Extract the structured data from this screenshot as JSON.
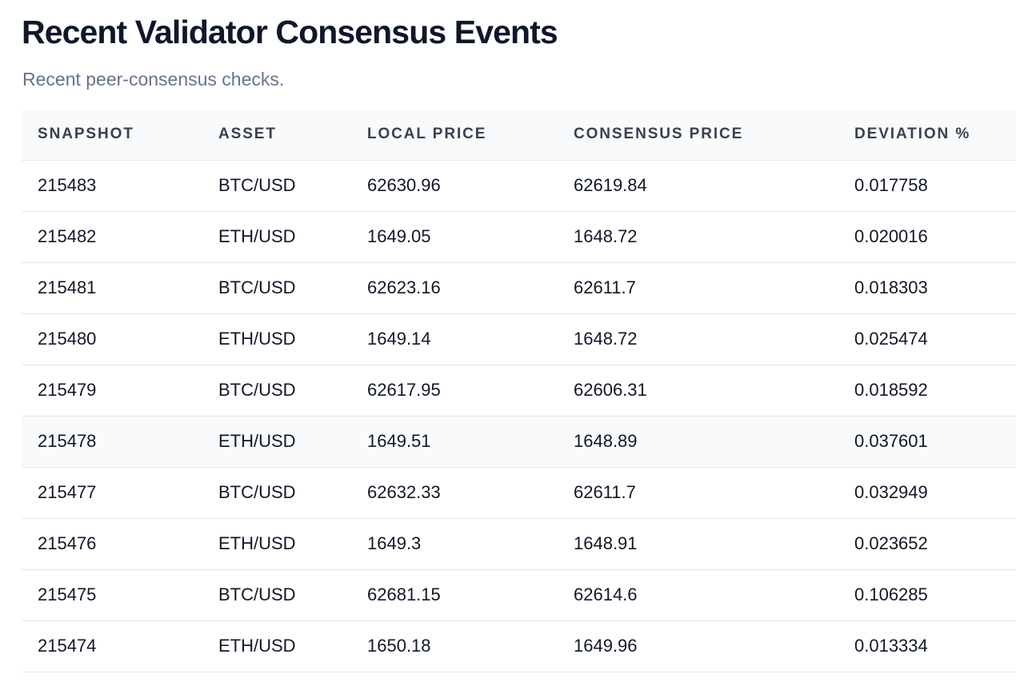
{
  "header": {
    "title": "Recent Validator Consensus Events",
    "subtitle": "Recent peer-consensus checks."
  },
  "table": {
    "columns": [
      "SNAPSHOT",
      "ASSET",
      "LOCAL PRICE",
      "CONSENSUS PRICE",
      "DEVIATION %"
    ],
    "rows": [
      {
        "snapshot": "215483",
        "asset": "BTC/USD",
        "local_price": "62630.96",
        "consensus_price": "62619.84",
        "deviation": "0.017758"
      },
      {
        "snapshot": "215482",
        "asset": "ETH/USD",
        "local_price": "1649.05",
        "consensus_price": "1648.72",
        "deviation": "0.020016"
      },
      {
        "snapshot": "215481",
        "asset": "BTC/USD",
        "local_price": "62623.16",
        "consensus_price": "62611.7",
        "deviation": "0.018303"
      },
      {
        "snapshot": "215480",
        "asset": "ETH/USD",
        "local_price": "1649.14",
        "consensus_price": "1648.72",
        "deviation": "0.025474"
      },
      {
        "snapshot": "215479",
        "asset": "BTC/USD",
        "local_price": "62617.95",
        "consensus_price": "62606.31",
        "deviation": "0.018592"
      },
      {
        "snapshot": "215478",
        "asset": "ETH/USD",
        "local_price": "1649.51",
        "consensus_price": "1648.89",
        "deviation": "0.037601"
      },
      {
        "snapshot": "215477",
        "asset": "BTC/USD",
        "local_price": "62632.33",
        "consensus_price": "62611.7",
        "deviation": "0.032949"
      },
      {
        "snapshot": "215476",
        "asset": "ETH/USD",
        "local_price": "1649.3",
        "consensus_price": "1648.91",
        "deviation": "0.023652"
      },
      {
        "snapshot": "215475",
        "asset": "BTC/USD",
        "local_price": "62681.15",
        "consensus_price": "62614.6",
        "deviation": "0.106285"
      },
      {
        "snapshot": "215474",
        "asset": "ETH/USD",
        "local_price": "1650.18",
        "consensus_price": "1649.96",
        "deviation": "0.013334"
      }
    ]
  },
  "colors": {
    "header_bg": "#f8fafc",
    "row_highlight_bg": "#f8fafc",
    "border": "#e5e7eb",
    "title": "#0f172a",
    "subtitle": "#64748b"
  }
}
